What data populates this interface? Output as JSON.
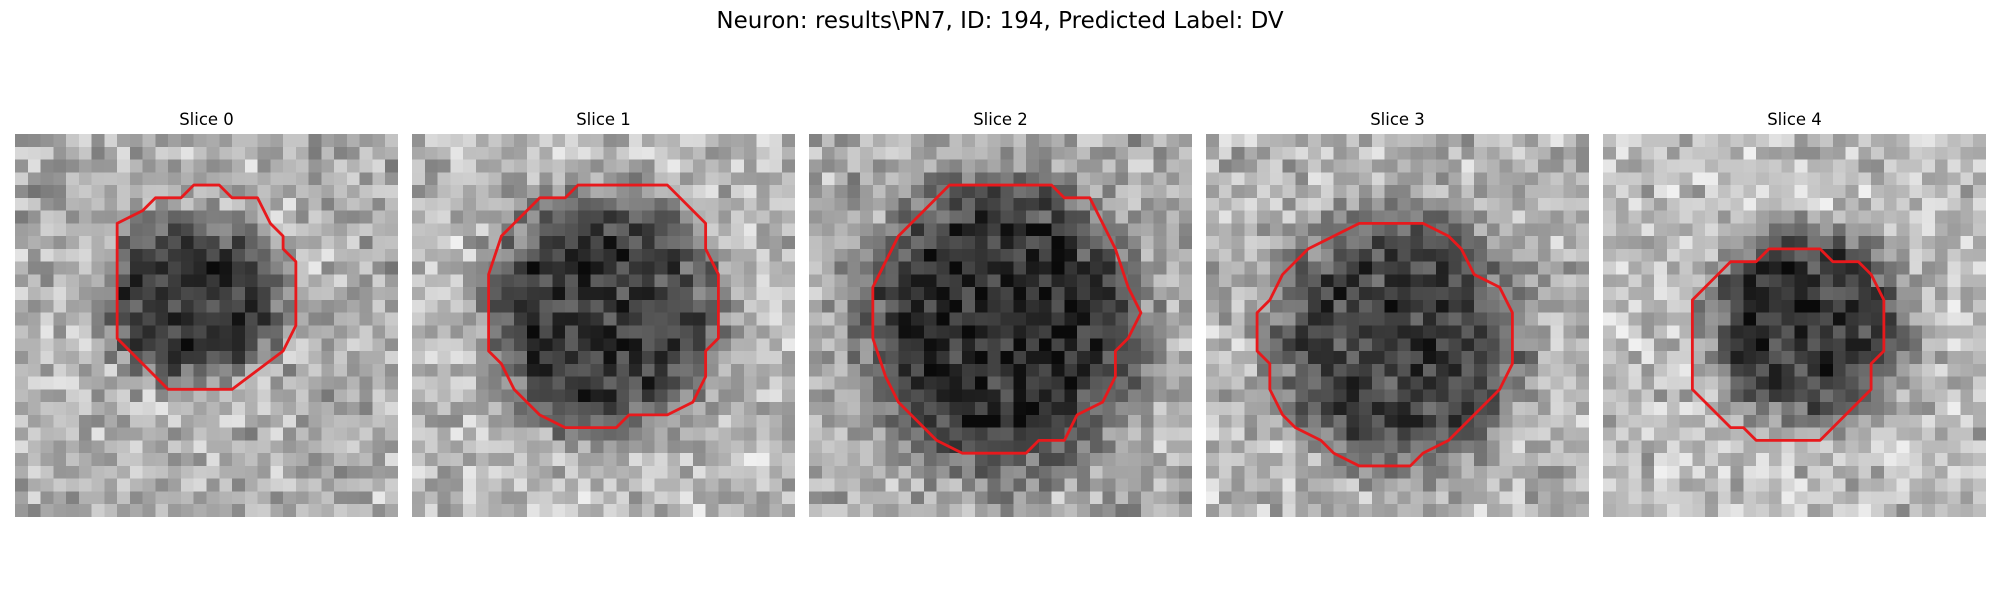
{
  "figure": {
    "title": "Neuron: results\\PN7, ID: 194, Predicted Label: DV"
  },
  "colors": {
    "contour": "#e8191c",
    "background": "#ffffff"
  },
  "panels": [
    {
      "label": "Slice 0",
      "icon": "grayscale-microscopy-slice"
    },
    {
      "label": "Slice 1",
      "icon": "grayscale-microscopy-slice"
    },
    {
      "label": "Slice 2",
      "icon": "grayscale-microscopy-slice"
    },
    {
      "label": "Slice 3",
      "icon": "grayscale-microscopy-slice"
    },
    {
      "label": "Slice 4",
      "icon": "grayscale-microscopy-slice"
    }
  ]
}
